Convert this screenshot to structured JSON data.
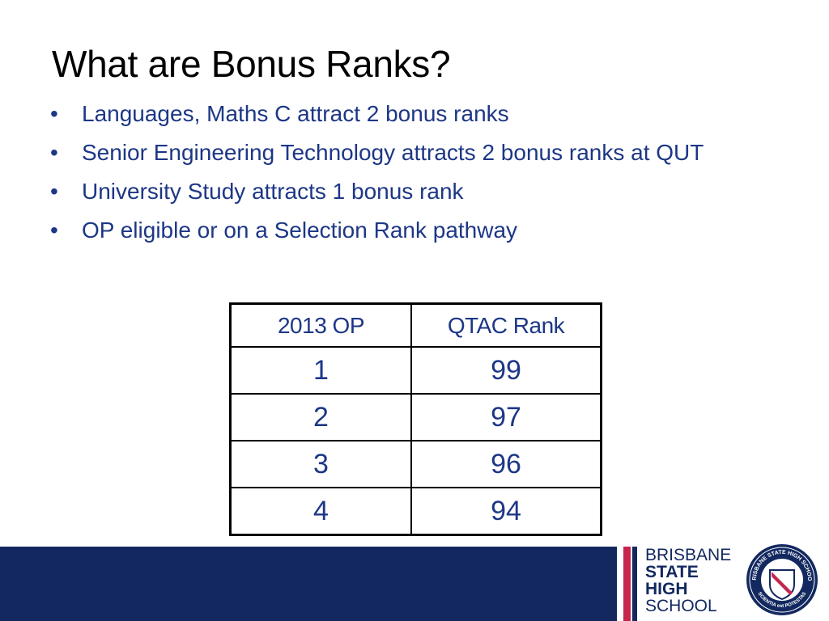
{
  "slide": {
    "title": "What are Bonus Ranks?",
    "bullet_char": "•",
    "bullets": [
      "Languages, Maths C attract 2 bonus ranks",
      "Senior Engineering Technology attracts 2 bonus ranks at QUT",
      "University Study attracts 1 bonus rank",
      "OP eligible or on a Selection Rank pathway"
    ]
  },
  "table": {
    "headers": [
      "2013 OP",
      "QTAC Rank"
    ],
    "rows": [
      [
        "1",
        "99"
      ],
      [
        "2",
        "97"
      ],
      [
        "3",
        "96"
      ],
      [
        "4",
        "94"
      ]
    ]
  },
  "footer": {
    "logo_lines": [
      "BRISBANE",
      "STATE",
      "HIGH",
      "SCHOOL"
    ],
    "crest_text_top": "BRISBANE STATE HIGH SCHOOL",
    "crest_text_bottom": "SCIENTIA est POTESTAS"
  },
  "colors": {
    "text_blue": "#1d3786",
    "navy": "#12285f",
    "crimson": "#c6254f"
  }
}
